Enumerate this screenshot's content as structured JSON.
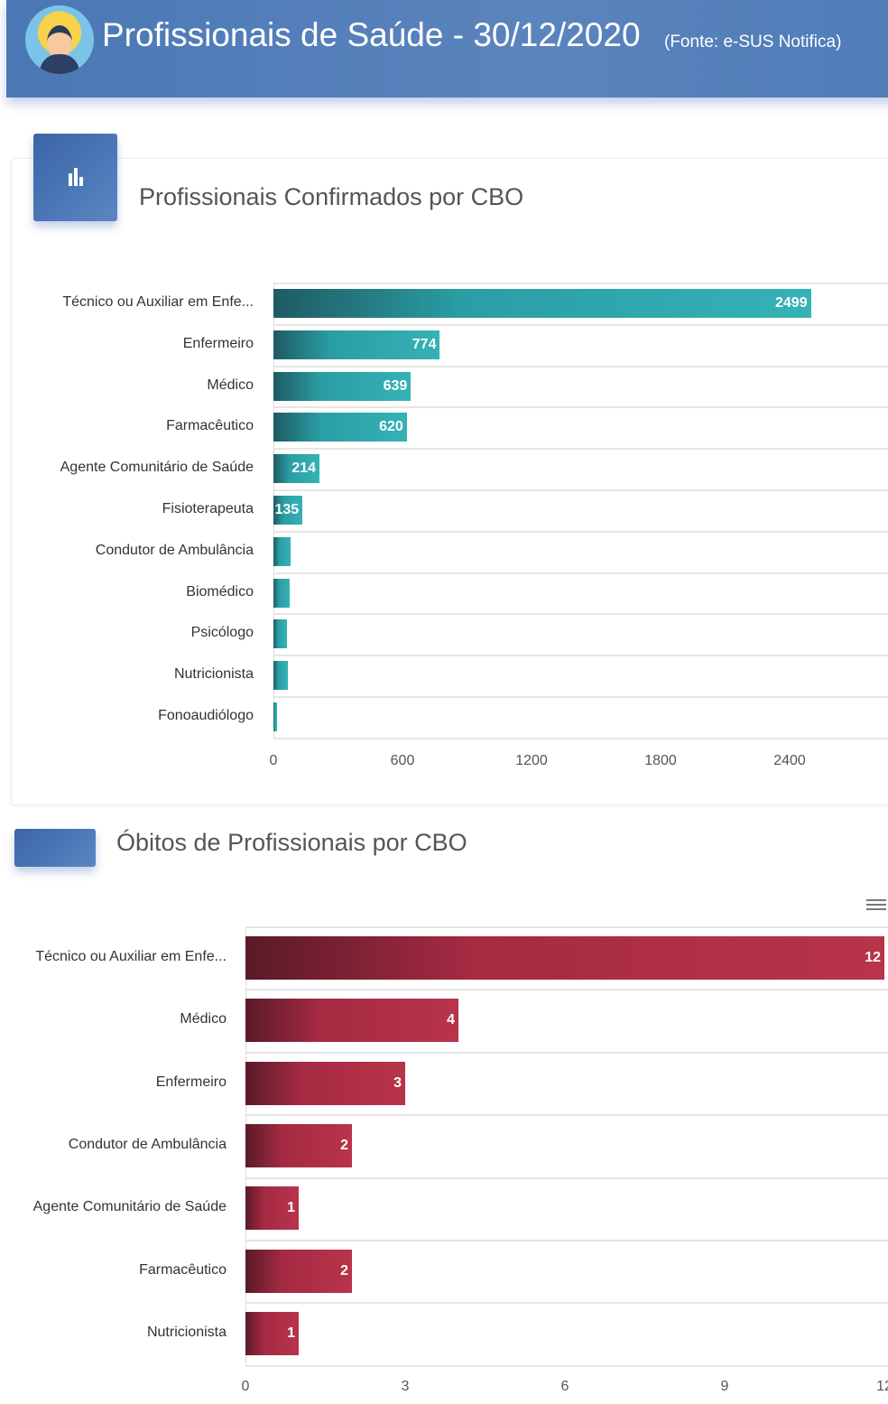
{
  "header": {
    "title": "Profissionais de Saúde - 30/12/2020",
    "source": "(Fonte: e-SUS Notifica)"
  },
  "colors": {
    "header": "#4f7cb8",
    "chart1_bar": "#2aa3a8",
    "chart2_bar": "#b02a44"
  },
  "chart_data": [
    {
      "type": "bar",
      "orientation": "horizontal",
      "title": "Profissionais Confirmados por CBO",
      "categories": [
        "Técnico ou Auxiliar em Enfe...",
        "Enfermeiro",
        "Médico",
        "Farmacêutico",
        "Agente Comunitário de Saúde",
        "Fisioterapeuta",
        "Condutor de Ambulância",
        "Biomédico",
        "Psicólogo",
        "Nutricionista",
        "Fonoaudiólogo"
      ],
      "values": [
        2499,
        774,
        639,
        620,
        214,
        135,
        80,
        75,
        63,
        67,
        17
      ],
      "data_labels": [
        "2499",
        "774",
        "639",
        "620",
        "214",
        "135",
        "",
        "",
        "",
        "",
        ""
      ],
      "xticks": [
        "0",
        "600",
        "1200",
        "1800",
        "2400"
      ],
      "xlim": [
        0,
        2850
      ],
      "grid": true
    },
    {
      "type": "bar",
      "orientation": "horizontal",
      "title": "Óbitos de Profissionais por CBO",
      "categories": [
        "Técnico ou Auxiliar em Enfe...",
        "Médico",
        "Enfermeiro",
        "Condutor de Ambulância",
        "Agente Comunitário de Saúde",
        "Farmacêutico",
        "Nutricionista"
      ],
      "values": [
        12,
        4,
        3,
        2,
        1,
        2,
        1
      ],
      "data_labels": [
        "12",
        "4",
        "3",
        "2",
        "1",
        "2",
        "1"
      ],
      "xticks": [
        "0",
        "3",
        "6",
        "9",
        "12"
      ],
      "xlim": [
        0,
        12
      ],
      "grid": true
    }
  ]
}
